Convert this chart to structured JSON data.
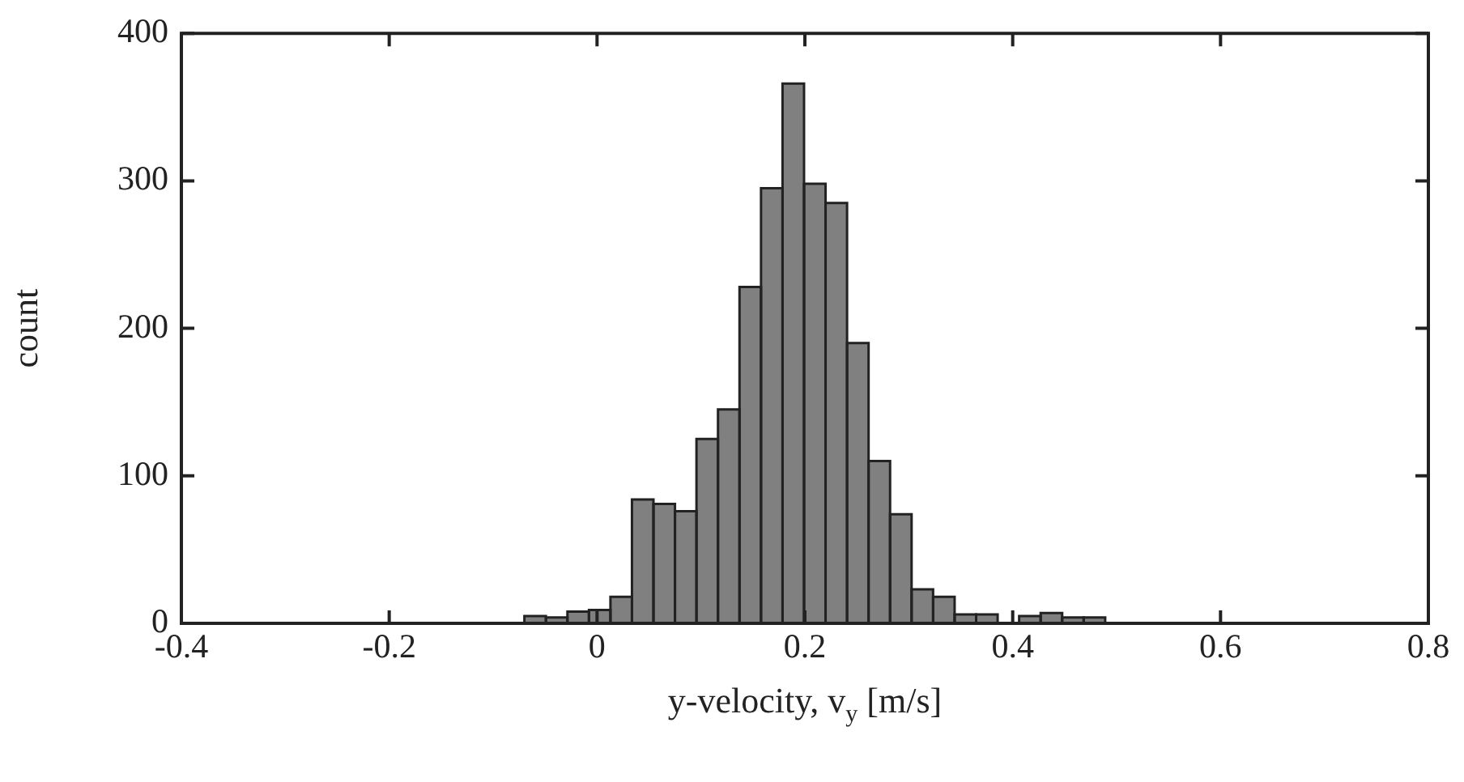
{
  "chart_data": {
    "type": "histogram",
    "xlabel": "y-velocity, v$_{y}$ [m/s]",
    "ylabel": "count",
    "bins": [
      -0.339,
      -0.3183,
      -0.2976,
      -0.2769,
      -0.2562,
      -0.2355,
      -0.2148,
      -0.1941,
      -0.1734,
      -0.1527,
      -0.132,
      -0.1113,
      -0.0906,
      -0.0699,
      -0.0492,
      -0.0285,
      -0.0078,
      0.0129,
      0.0336,
      0.0543,
      0.075,
      0.0957,
      0.1164,
      0.1371,
      0.1578,
      0.1785,
      0.1992,
      0.2199,
      0.2406,
      0.2613,
      0.282,
      0.3027,
      0.3234,
      0.3441,
      0.3648,
      0.3855,
      0.4062,
      0.4269,
      0.4476,
      0.4683,
      0.489,
      0.5097,
      0.5304,
      0.5511,
      0.5718,
      0.5925,
      0.6132,
      0.6339,
      0.6546,
      0.6753,
      0.696
    ],
    "values": [
      0,
      0,
      0,
      0,
      0,
      0,
      0,
      0,
      0,
      0,
      0,
      0,
      0,
      5,
      4,
      8,
      9,
      18,
      84,
      81,
      76,
      125,
      145,
      228,
      295,
      366,
      298,
      285,
      190,
      110,
      74,
      23,
      18,
      6,
      6,
      0,
      5,
      7,
      4,
      4,
      0,
      0,
      0,
      0,
      0,
      0,
      0,
      0,
      0,
      0
    ],
    "color": "#808080",
    "xlim": [
      -0.4,
      0.8
    ],
    "xticks": [
      -0.4,
      -0.2,
      0,
      0.2,
      0.4,
      0.6,
      0.8
    ],
    "ylim": [
      0,
      400
    ],
    "yticks": [
      0,
      100,
      200,
      300,
      400
    ],
    "grid": false,
    "legend": false
  }
}
